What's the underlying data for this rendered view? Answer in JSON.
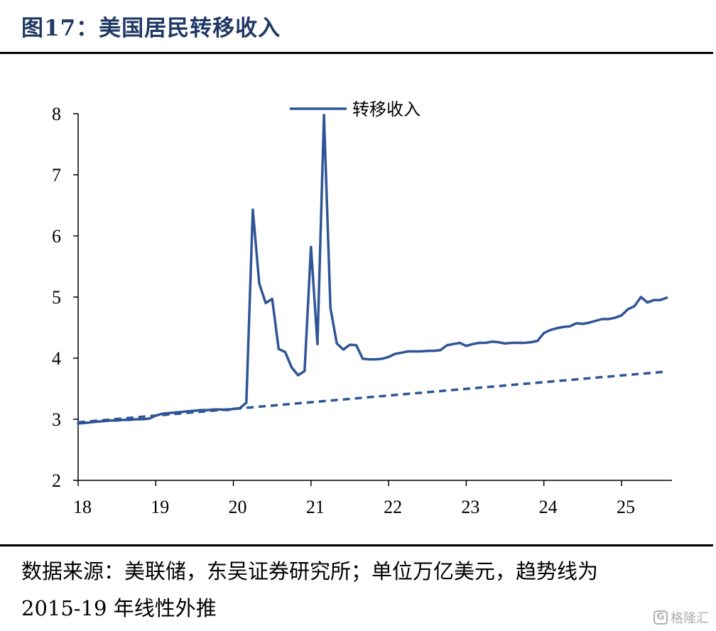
{
  "header": {
    "title": "图17：美国居民转移收入"
  },
  "footer": {
    "source": "数据来源：美联储，东吴证券研究所；单位万亿美元，趋势线为 2015-19 年线性外推",
    "watermark": "格隆汇"
  },
  "chart_data": {
    "type": "line",
    "title": "图17：美国居民转移收入",
    "xlabel": "",
    "ylabel": "",
    "xlim": [
      18,
      25.65
    ],
    "ylim": [
      2,
      8
    ],
    "x_ticks": [
      18,
      19,
      20,
      21,
      22,
      23,
      24,
      25
    ],
    "x_tick_labels": [
      "18",
      "19",
      "20",
      "21",
      "22",
      "23",
      "24",
      "25"
    ],
    "y_ticks": [
      2,
      3,
      4,
      5,
      6,
      7,
      8
    ],
    "y_tick_labels": [
      "2",
      "3",
      "4",
      "5",
      "6",
      "7",
      "8"
    ],
    "grid": false,
    "legend_position": "top-center",
    "colors": {
      "series": "#2F5597",
      "axis": "#000000",
      "title": "#1F3864"
    },
    "series": [
      {
        "name": "转移收入",
        "style": "solid",
        "points": [
          [
            18.0,
            2.93
          ],
          [
            18.083,
            2.94
          ],
          [
            18.167,
            2.95
          ],
          [
            18.25,
            2.96
          ],
          [
            18.333,
            2.97
          ],
          [
            18.417,
            2.98
          ],
          [
            18.5,
            2.98
          ],
          [
            18.583,
            2.99
          ],
          [
            18.667,
            2.99
          ],
          [
            18.75,
            3.0
          ],
          [
            18.833,
            3.0
          ],
          [
            18.917,
            3.01
          ],
          [
            19.0,
            3.06
          ],
          [
            19.083,
            3.09
          ],
          [
            19.167,
            3.1
          ],
          [
            19.25,
            3.11
          ],
          [
            19.333,
            3.12
          ],
          [
            19.417,
            3.13
          ],
          [
            19.5,
            3.14
          ],
          [
            19.583,
            3.15
          ],
          [
            19.667,
            3.15
          ],
          [
            19.75,
            3.16
          ],
          [
            19.833,
            3.16
          ],
          [
            19.917,
            3.15
          ],
          [
            20.0,
            3.17
          ],
          [
            20.083,
            3.18
          ],
          [
            20.167,
            3.27
          ],
          [
            20.25,
            6.43
          ],
          [
            20.333,
            5.22
          ],
          [
            20.417,
            4.9
          ],
          [
            20.5,
            4.97
          ],
          [
            20.583,
            4.15
          ],
          [
            20.667,
            4.1
          ],
          [
            20.75,
            3.85
          ],
          [
            20.833,
            3.72
          ],
          [
            20.917,
            3.79
          ],
          [
            21.0,
            5.82
          ],
          [
            21.083,
            4.23
          ],
          [
            21.167,
            7.98
          ],
          [
            21.25,
            4.82
          ],
          [
            21.333,
            4.24
          ],
          [
            21.417,
            4.14
          ],
          [
            21.5,
            4.22
          ],
          [
            21.583,
            4.21
          ],
          [
            21.667,
            3.99
          ],
          [
            21.75,
            3.98
          ],
          [
            21.833,
            3.98
          ],
          [
            21.917,
            3.99
          ],
          [
            22.0,
            4.02
          ],
          [
            22.083,
            4.07
          ],
          [
            22.167,
            4.09
          ],
          [
            22.25,
            4.11
          ],
          [
            22.333,
            4.11
          ],
          [
            22.417,
            4.11
          ],
          [
            22.5,
            4.12
          ],
          [
            22.583,
            4.12
          ],
          [
            22.667,
            4.13
          ],
          [
            22.75,
            4.21
          ],
          [
            22.833,
            4.23
          ],
          [
            22.917,
            4.25
          ],
          [
            23.0,
            4.2
          ],
          [
            23.083,
            4.23
          ],
          [
            23.167,
            4.25
          ],
          [
            23.25,
            4.25
          ],
          [
            23.333,
            4.27
          ],
          [
            23.417,
            4.26
          ],
          [
            23.5,
            4.24
          ],
          [
            23.583,
            4.25
          ],
          [
            23.667,
            4.25
          ],
          [
            23.75,
            4.25
          ],
          [
            23.833,
            4.26
          ],
          [
            23.917,
            4.28
          ],
          [
            24.0,
            4.41
          ],
          [
            24.083,
            4.46
          ],
          [
            24.167,
            4.49
          ],
          [
            24.25,
            4.51
          ],
          [
            24.333,
            4.52
          ],
          [
            24.417,
            4.57
          ],
          [
            24.5,
            4.56
          ],
          [
            24.583,
            4.58
          ],
          [
            24.667,
            4.61
          ],
          [
            24.75,
            4.64
          ],
          [
            24.833,
            4.64
          ],
          [
            24.917,
            4.66
          ],
          [
            25.0,
            4.7
          ],
          [
            25.083,
            4.8
          ],
          [
            25.167,
            4.85
          ],
          [
            25.25,
            5.0
          ],
          [
            25.333,
            4.91
          ],
          [
            25.417,
            4.95
          ],
          [
            25.5,
            4.95
          ],
          [
            25.583,
            4.99
          ]
        ]
      },
      {
        "style": "dashed",
        "points": [
          [
            18.0,
            2.95
          ],
          [
            25.583,
            3.78
          ]
        ]
      }
    ]
  }
}
